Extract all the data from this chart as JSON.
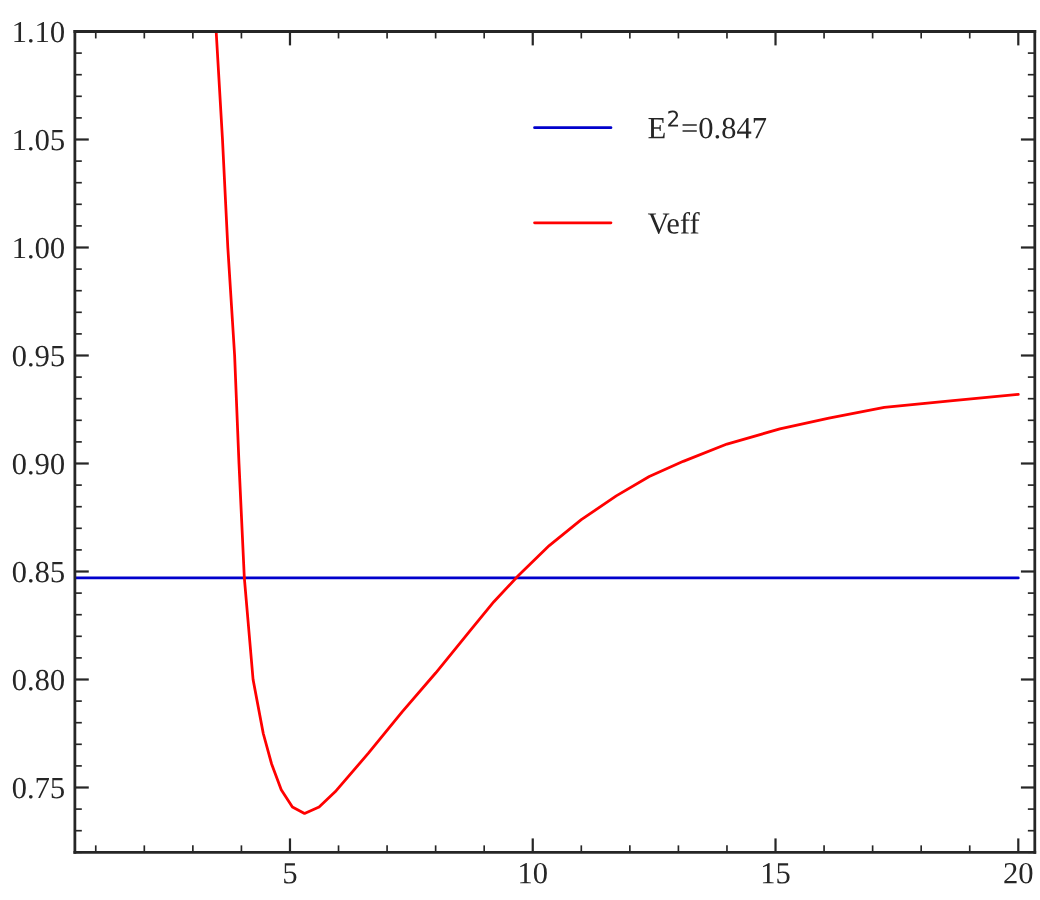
{
  "chart_data": {
    "type": "line",
    "series": [
      {
        "name": "E$^{2}$=0.847",
        "color": "#0000cc",
        "x": [
          0.6,
          20
        ],
        "values": [
          0.847,
          0.847
        ]
      },
      {
        "name": "Veff",
        "color": "#ff0000",
        "x": [
          3.48,
          3.61,
          3.72,
          3.86,
          3.95,
          4.06,
          4.24,
          4.45,
          4.62,
          4.82,
          5.05,
          5.3,
          5.6,
          5.93,
          6.62,
          7.31,
          8.0,
          8.69,
          9.2,
          9.7,
          10.34,
          11.0,
          11.72,
          12.4,
          13.1,
          14.0,
          15.09,
          16.1,
          17.24,
          18.6,
          20.0
        ],
        "values": [
          1.1,
          1.05,
          1.0,
          0.95,
          0.9,
          0.847,
          0.8,
          0.775,
          0.761,
          0.749,
          0.741,
          0.738,
          0.741,
          0.748,
          0.766,
          0.785,
          0.803,
          0.822,
          0.836,
          0.848,
          0.862,
          0.874,
          0.885,
          0.894,
          0.901,
          0.909,
          0.916,
          0.921,
          0.926,
          0.929,
          0.932
        ]
      }
    ],
    "xlim": [
      0.57,
      20.34
    ],
    "ylim": [
      0.72,
      1.1
    ],
    "xticks": [
      5,
      10,
      15,
      20
    ],
    "yticks": [
      {
        "value": 0.75,
        "label": "0.75"
      },
      {
        "value": 0.8,
        "label": "0.80"
      },
      {
        "value": 0.85,
        "label": "0.85"
      },
      {
        "value": 0.9,
        "label": "0.90"
      },
      {
        "value": 0.95,
        "label": "0.95"
      },
      {
        "value": 1.0,
        "label": "1.00"
      },
      {
        "value": 1.05,
        "label": "1.05"
      },
      {
        "value": 1.1,
        "label": "1.10"
      }
    ],
    "grid": false,
    "legend": "top",
    "marker": "none",
    "line_style": "solid"
  }
}
